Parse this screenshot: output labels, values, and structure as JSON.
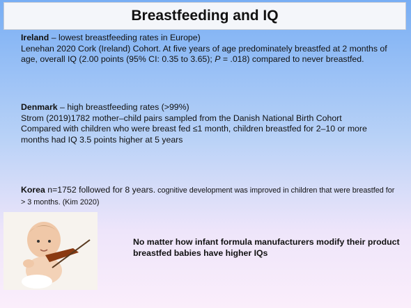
{
  "title": "Breastfeeding and IQ",
  "sections": [
    {
      "heading": "Ireland",
      "lead": " – lowest breastfeeding rates in Europe)",
      "paragraph": {
        "before": "Lenehan 2020 Cork (Ireland) Cohort. At five years of age predominately breastfed at 2 months of age,  overall IQ (2.00 points (95% CI: 0.35 to 3.65); ",
        "italic": "P",
        "after": " = .018) compared to never breastfed."
      }
    },
    {
      "heading": "Denmark",
      "lead": " – high breastfeeding rates (>99%)",
      "paragraphs": [
        "Strom (2019)1782 mother–child pairs sampled from the Danish National Birth Cohort",
        "Compared with children who were breast fed ≤1 month, children breastfed for 2–10 or more months had IQ 3.5 points higher at 5 years"
      ]
    },
    {
      "heading": "Korea",
      "lead": "  n=1752 followed for 8 years.",
      "note": " cognitive development was improved in children that were breastfed for > 3 months. (Kim  2020)"
    }
  ],
  "conclusion": "No matter how infant formula manufacturers modify their product breastfed babies have higher IQs"
}
